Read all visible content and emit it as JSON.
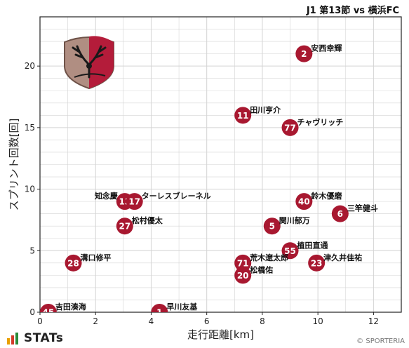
{
  "header": {
    "title": "J1 第13節 vs 横浜FC"
  },
  "footer": {
    "brand": "STATs",
    "copyright": "© SPORTERIA"
  },
  "colors": {
    "marker": "#a81830",
    "grid": "#d4d4d4",
    "axis": "#222222"
  },
  "logo_icon": "kashima-antlers-crest",
  "chart_data": {
    "type": "scatter",
    "title": "",
    "xlabel": "走行距離[km]",
    "ylabel": "スプリント回数[回]",
    "xlim": [
      0,
      13
    ],
    "ylim": [
      0,
      24
    ],
    "xticks": [
      0,
      2,
      4,
      6,
      8,
      10,
      12
    ],
    "yticks": [
      0,
      5,
      10,
      15,
      20
    ],
    "grid": true,
    "points": [
      {
        "number": "2",
        "name": "安西幸輝",
        "x": 9.5,
        "y": 21
      },
      {
        "number": "11",
        "name": "田川亨介",
        "x": 7.3,
        "y": 16
      },
      {
        "number": "77",
        "name": "チャヴリッチ",
        "x": 9.0,
        "y": 15
      },
      {
        "number": "13",
        "name": "知念慶",
        "x": 3.05,
        "y": 9
      },
      {
        "number": "17",
        "name": "ターレスブレーネル",
        "x": 3.4,
        "y": 9
      },
      {
        "number": "40",
        "name": "鈴木優磨",
        "x": 9.5,
        "y": 9
      },
      {
        "number": "6",
        "name": "三竿健斗",
        "x": 10.8,
        "y": 8
      },
      {
        "number": "27",
        "name": "松村優太",
        "x": 3.05,
        "y": 7
      },
      {
        "number": "5",
        "name": "関川郁万",
        "x": 8.35,
        "y": 7
      },
      {
        "number": "55",
        "name": "植田直通",
        "x": 9.0,
        "y": 5
      },
      {
        "number": "28",
        "name": "溝口修平",
        "x": 1.2,
        "y": 4
      },
      {
        "number": "71",
        "name": "荒木遼太郎",
        "x": 7.3,
        "y": 4
      },
      {
        "number": "23",
        "name": "津久井佳祐",
        "x": 9.95,
        "y": 4
      },
      {
        "number": "20",
        "name": "松橋佑",
        "x": 7.3,
        "y": 3
      },
      {
        "number": "45",
        "name": "吉田湊海",
        "x": 0.3,
        "y": 0
      },
      {
        "number": "1",
        "name": "早川友基",
        "x": 4.3,
        "y": 0
      }
    ]
  }
}
